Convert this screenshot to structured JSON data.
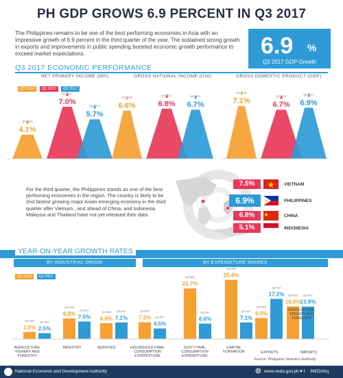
{
  "title": "PH GDP GROWS 6.9 PERCENT IN Q3 2017",
  "intro": "The Philippines  remains to be one of the best performing economies in Asia with an impressive growth of 6.9 percent in the third quarter of the year. The sustained strong growth in exports and improvements in public spending boosted economic growth performance to exceed market expectations.",
  "headline": {
    "value": "6.9",
    "unit": "%",
    "caption": "Q3 2017 GDP Growth"
  },
  "performance": {
    "title": "Q3 2017 ECONOMIC PERFORMANCE",
    "legend": [
      "Q3 2016",
      "Q2 2017",
      "Q3 2017"
    ],
    "panels": [
      "NET PRIMARY INCOME (NPI)",
      "GROSS NATIONAL INCOME (GNI)",
      "GROSS DOMESTIC PRODUCT (GDP)"
    ]
  },
  "asia": {
    "blurb": "For the third quarter, the Philippines stands as one of the best performing economies in the region. The country is likely to be 2nd fastest growing major Asian emerging economy in the third quarter after Vietnam , and ahead of China, and Indonesia. Malaysia and Thailand have not yet released their data.",
    "countries": [
      {
        "name": "VIETNAM",
        "value": "7.5%"
      },
      {
        "name": "PHILIPPINES",
        "value": "6.9%"
      },
      {
        "name": "CHINA",
        "value": "6.8%"
      },
      {
        "name": "INDONESIA",
        "value": "5.1%"
      }
    ]
  },
  "yoy": {
    "title": "YEAR-ON-YEAR GROWTH RATES",
    "origin_label": "BY INDUSTRIAL ORIGIN",
    "expenditure_label": "BY EXPENDITURE SHARES",
    "legend": [
      "Q3 2016",
      "Q3 2017"
    ],
    "source": "Source: Philippine Statistics Authority"
  },
  "footer": {
    "org": "National Economic and Development Authority",
    "web": "www.neda.gov.ph",
    "social": "/NEDAhq"
  },
  "colors": {
    "q3_2016": "#f5a031",
    "q2_2017": "#e8385a",
    "q3_2017": "#2e9bd6",
    "navy": "#1f3a5f"
  },
  "chart_data": [
    {
      "type": "bar",
      "title": "NET PRIMARY INCOME (NPI)",
      "categories": [
        "Q3 2016",
        "Q2 2017",
        "Q3 2017"
      ],
      "values": [
        4.1,
        7.0,
        5.7
      ],
      "labels": [
        "4.1%",
        "7.0%",
        "5.7%"
      ]
    },
    {
      "type": "bar",
      "title": "GROSS NATIONAL INCOME (GNI)",
      "categories": [
        "Q3 2016",
        "Q2 2017",
        "Q3 2017"
      ],
      "values": [
        6.6,
        6.8,
        6.7
      ],
      "labels": [
        "6.6%",
        "6.8%",
        "6.7%"
      ]
    },
    {
      "type": "bar",
      "title": "GROSS DOMESTIC PRODUCT (GDP)",
      "categories": [
        "Q3 2016",
        "Q2 2017",
        "Q3 2017"
      ],
      "values": [
        7.1,
        6.7,
        6.9
      ],
      "labels": [
        "7.1%",
        "6.7%",
        "6.9%"
      ]
    },
    {
      "type": "bar",
      "title": "BY INDUSTRIAL ORIGIN",
      "categories": [
        "AGRICULTURE, FISHERY AND FORESTRY",
        "INDUSTRY",
        "SERVICES"
      ],
      "series": [
        {
          "name": "Q3 2016",
          "values": [
            3.0,
            8.8,
            6.8
          ],
          "labels": [
            "3.0%",
            "8.8%",
            "6.8%"
          ]
        },
        {
          "name": "Q3 2017",
          "values": [
            2.5,
            7.5,
            7.1
          ],
          "labels": [
            "2.5%",
            "7.5%",
            "7.1%"
          ]
        }
      ]
    },
    {
      "type": "bar",
      "title": "BY EXPENDITURE SHARES",
      "categories": [
        "HOUSEHOLD FINAL CONSUMPTION EXPENDITURE",
        "GOV'T FINAL CONSUMPTION EXPENDITURE",
        "CAPITAL FORMATION",
        "EXPORTS",
        "IMPORTS"
      ],
      "series": [
        {
          "name": "Q3 2016",
          "values": [
            7.2,
            21.7,
            25.4,
            9.0,
            14.0
          ],
          "labels": [
            "7.2%",
            "21.7%",
            "25.4%",
            "9.0%",
            "14.0%"
          ]
        },
        {
          "name": "Q3 2017",
          "values": [
            4.5,
            6.6,
            7.1,
            17.2,
            13.9
          ],
          "labels": [
            "4.5%",
            "6.6%",
            "7.1%",
            "17.2%",
            "13.9%"
          ]
        }
      ]
    }
  ]
}
